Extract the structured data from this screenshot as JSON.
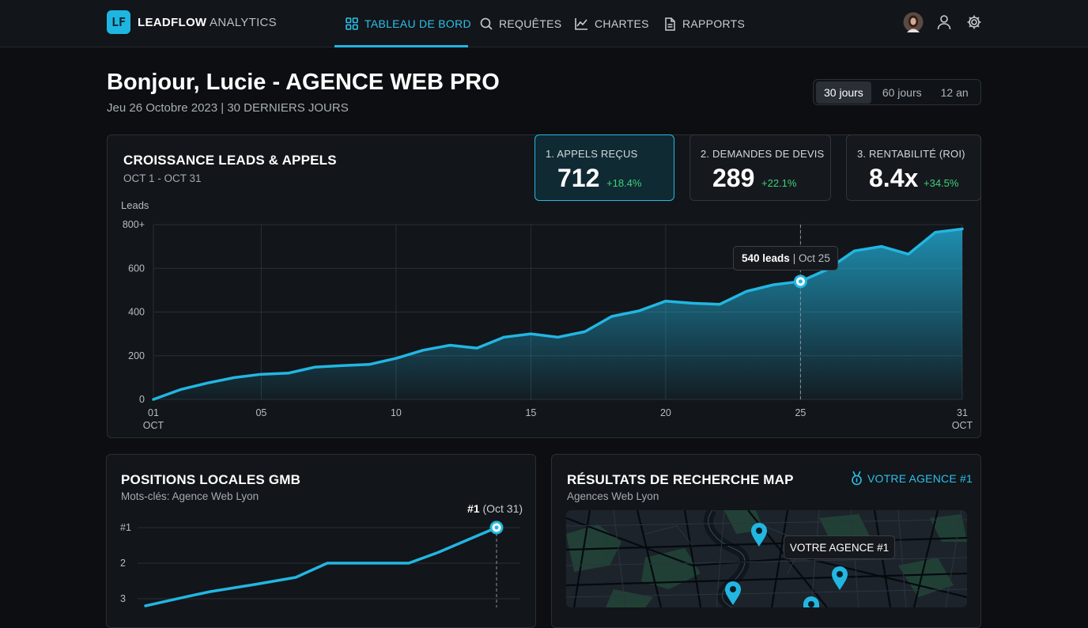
{
  "brand": {
    "logo_text": "LF",
    "name_bold": "LEADFLOW",
    "name_rest": "ANALYTICS",
    "accent": "#1eb6e0"
  },
  "nav": [
    {
      "label": "TABLEAU DE BORD",
      "icon": "grid-icon",
      "active": true
    },
    {
      "label": "REQUÊTES",
      "icon": "search-icon"
    },
    {
      "label": "CHARTES",
      "icon": "line-chart-icon"
    },
    {
      "label": "RAPPORTS",
      "icon": "document-icon"
    }
  ],
  "header": {
    "greeting": "Bonjour, Lucie - AGENCE WEB PRO",
    "date": "Jeu 26 Octobre 2023 | 30 DERNIERS JOURS",
    "ranges": [
      "30 jours",
      "60 jours",
      "12 an"
    ],
    "selected_range": "30 jours"
  },
  "main_chart": {
    "title": "CROISSANCE LEADS & APPELS",
    "subtitle": "OCT 1 - OCT 31",
    "tooltip_value": "540 leads",
    "tooltip_date": "| Oct 25"
  },
  "kpis": [
    {
      "label": "1. APPELS REÇUS",
      "value": "712",
      "delta": "+18.4%"
    },
    {
      "label": "2. DEMANDES DE DEVIS",
      "value": "289",
      "delta": "+22.1%"
    },
    {
      "label": "3. RENTABILITÉ (ROI)",
      "value": "8.4x",
      "delta": "+34.5%"
    }
  ],
  "gmb": {
    "title": "POSITIONS LOCALES GMB",
    "subtitle": "Mots-clés: Agence Web Lyon",
    "marker_bold": "#1",
    "marker_rest": "(Oct 31)"
  },
  "map": {
    "title": "RÉSULTATS DE RECHERCHE MAP",
    "subtitle": "Agences Web Lyon",
    "badge": "VOTRE AGENCE #1",
    "pin_label": "VOTRE AGENCE #1"
  },
  "chart_data": [
    {
      "type": "area",
      "ylabel": "Leads",
      "ylim": [
        0,
        800
      ],
      "yticks": [
        "0",
        "200",
        "400",
        "600",
        "800+"
      ],
      "xticks": [
        {
          "day": 1,
          "label": "01",
          "sub": "OCT"
        },
        {
          "day": 5,
          "label": "05"
        },
        {
          "day": 10,
          "label": "10"
        },
        {
          "day": 15,
          "label": "15"
        },
        {
          "day": 20,
          "label": "20"
        },
        {
          "day": 25,
          "label": "25"
        },
        {
          "day": 31,
          "label": "31",
          "sub": "OCT"
        }
      ],
      "x": [
        1,
        2,
        3,
        4,
        5,
        6,
        7,
        8,
        9,
        10,
        11,
        12,
        13,
        14,
        15,
        16,
        17,
        18,
        19,
        20,
        21,
        22,
        23,
        24,
        25,
        26,
        27,
        28,
        29,
        30,
        31
      ],
      "values": [
        0,
        45,
        75,
        100,
        115,
        120,
        148,
        155,
        160,
        188,
        225,
        248,
        235,
        285,
        300,
        285,
        310,
        380,
        405,
        450,
        440,
        435,
        495,
        525,
        540,
        595,
        680,
        700,
        665,
        765,
        780
      ],
      "highlight": {
        "day": 25,
        "value": 540
      },
      "color": "#22b6e2"
    },
    {
      "type": "line",
      "yticks": [
        "#1",
        "2",
        "3"
      ],
      "ylim": [
        1,
        3
      ],
      "values": [
        3.2,
        2.95,
        2.8,
        2.6,
        2.4,
        2.0,
        2.0,
        2.0,
        1.7,
        1.0
      ],
      "color": "#22b6e2"
    }
  ]
}
